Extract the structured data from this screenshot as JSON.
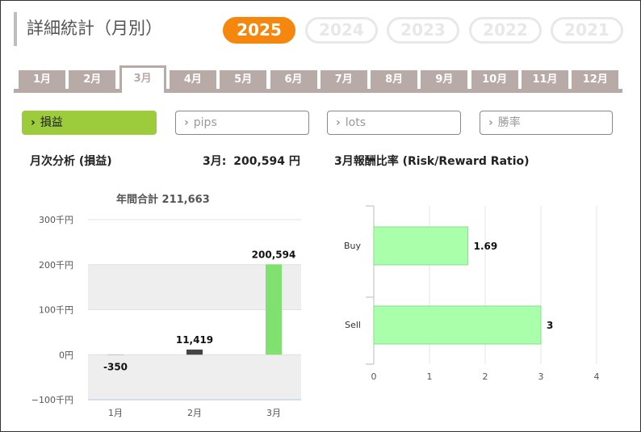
{
  "header": {
    "title": "詳細統計（月別）"
  },
  "years": [
    {
      "label": "2025",
      "active": true
    },
    {
      "label": "2024",
      "active": false
    },
    {
      "label": "2023",
      "active": false
    },
    {
      "label": "2022",
      "active": false
    },
    {
      "label": "2021",
      "active": false
    }
  ],
  "months": [
    "1月",
    "2月",
    "3月",
    "4月",
    "5月",
    "6月",
    "7月",
    "8月",
    "9月",
    "10月",
    "11月",
    "12月"
  ],
  "active_month_index": 2,
  "metrics": [
    {
      "label": "損益",
      "active": true
    },
    {
      "label": "pips",
      "active": false
    },
    {
      "label": "lots",
      "active": false
    },
    {
      "label": "勝率",
      "active": false
    }
  ],
  "chevron_icon": "chevron-right-icon",
  "colors": {
    "accent_year": "#f5870f",
    "active_metric": "#9ccc3c",
    "tab_gray": "#b7aaa7",
    "bar_positive": "#80e070",
    "bar_small": "#444444",
    "rr_bar": "#aaffaa",
    "rr_bar_border": "#88dd88"
  },
  "left_panel": {
    "title": "月次分析 (損益)",
    "month_value_label": "3月:",
    "month_value": "200,594 円",
    "annual_total": "年間合計 211,663"
  },
  "right_panel": {
    "title": "3月報酬比率 (Risk/Reward Ratio)"
  },
  "chart_data": [
    {
      "type": "bar",
      "categories": [
        "1月",
        "2月",
        "3月"
      ],
      "values": [
        -350,
        11419,
        200594
      ],
      "data_labels": [
        "-350",
        "11,419",
        "200,594"
      ],
      "ytick_values": [
        300000,
        200000,
        100000,
        0,
        -100000
      ],
      "yticks": [
        "300千円",
        "200千円",
        "100千円",
        "0円",
        "−100千円"
      ],
      "ylim": [
        -100000,
        300000
      ],
      "grid": "banded"
    },
    {
      "type": "bar",
      "orientation": "horizontal",
      "categories": [
        "Buy",
        "Sell"
      ],
      "values": [
        1.69,
        3
      ],
      "data_labels": [
        "1.69",
        "3"
      ],
      "xticks": [
        0,
        1,
        2,
        3,
        4
      ],
      "xlim": [
        0,
        4
      ],
      "grid": true
    }
  ]
}
